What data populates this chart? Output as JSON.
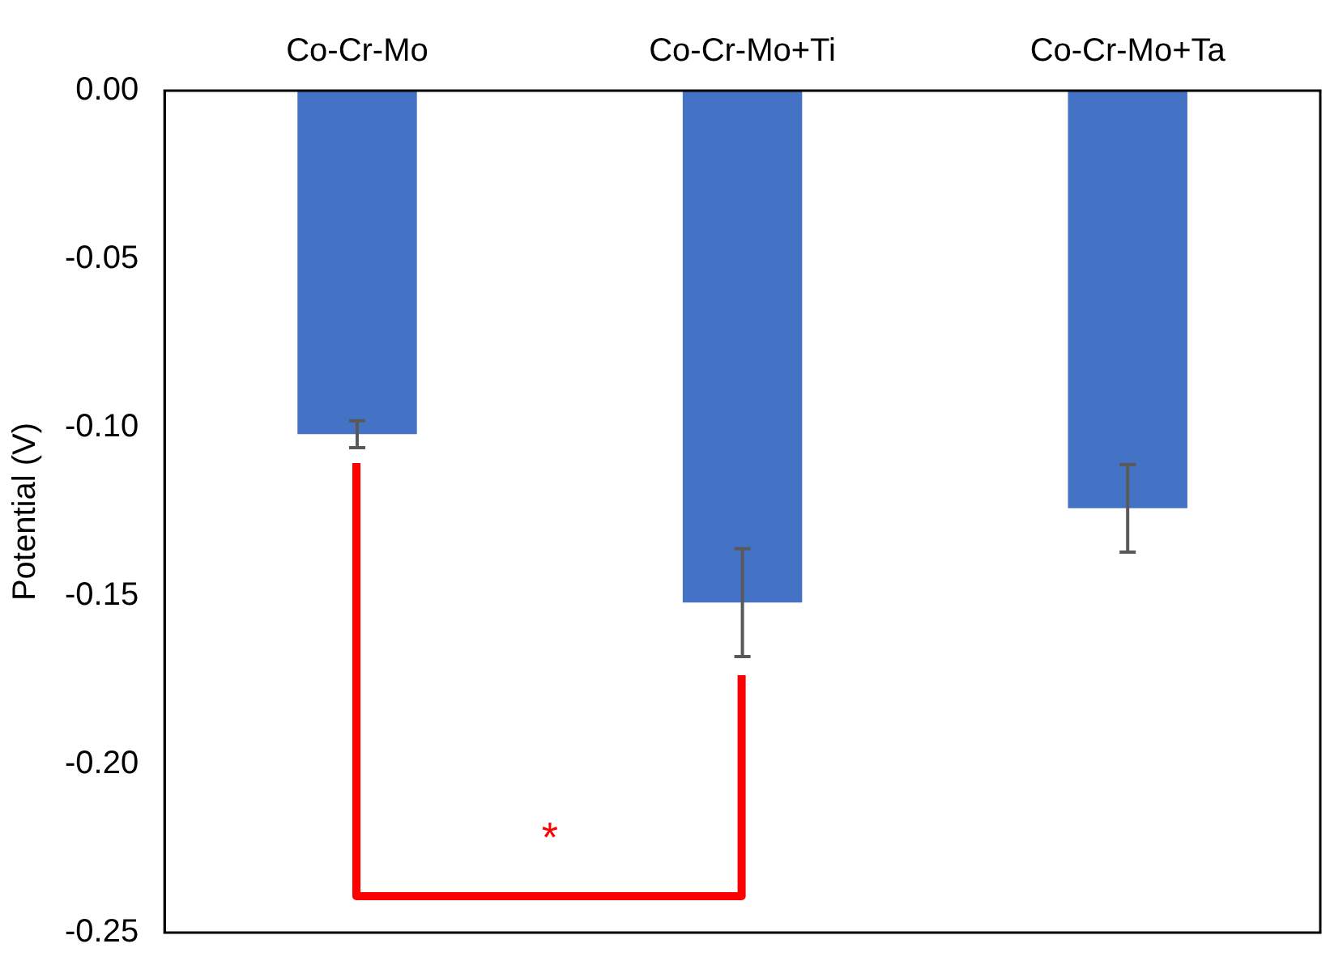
{
  "chart_data": {
    "type": "bar",
    "ylabel": "Potential (V)",
    "categories": [
      "Co-Cr-Mo",
      "Co-Cr-Mo+Ti",
      "Co-Cr-Mo+Ta"
    ],
    "values": [
      -0.102,
      -0.152,
      -0.124
    ],
    "errors": [
      0.004,
      0.016,
      0.013
    ],
    "color": "#4472c4",
    "ylim": [
      -0.25,
      0
    ],
    "yticks": [
      {
        "value": 0,
        "label": "0.00"
      },
      {
        "value": -0.05,
        "label": "-0.05"
      },
      {
        "value": -0.1,
        "label": "-0.10"
      },
      {
        "value": -0.15,
        "label": "-0.15"
      },
      {
        "value": -0.2,
        "label": "-0.20"
      },
      {
        "value": -0.25,
        "label": "-0.25"
      }
    ],
    "grid": false,
    "legend": false,
    "annotations": [
      "*"
    ]
  }
}
